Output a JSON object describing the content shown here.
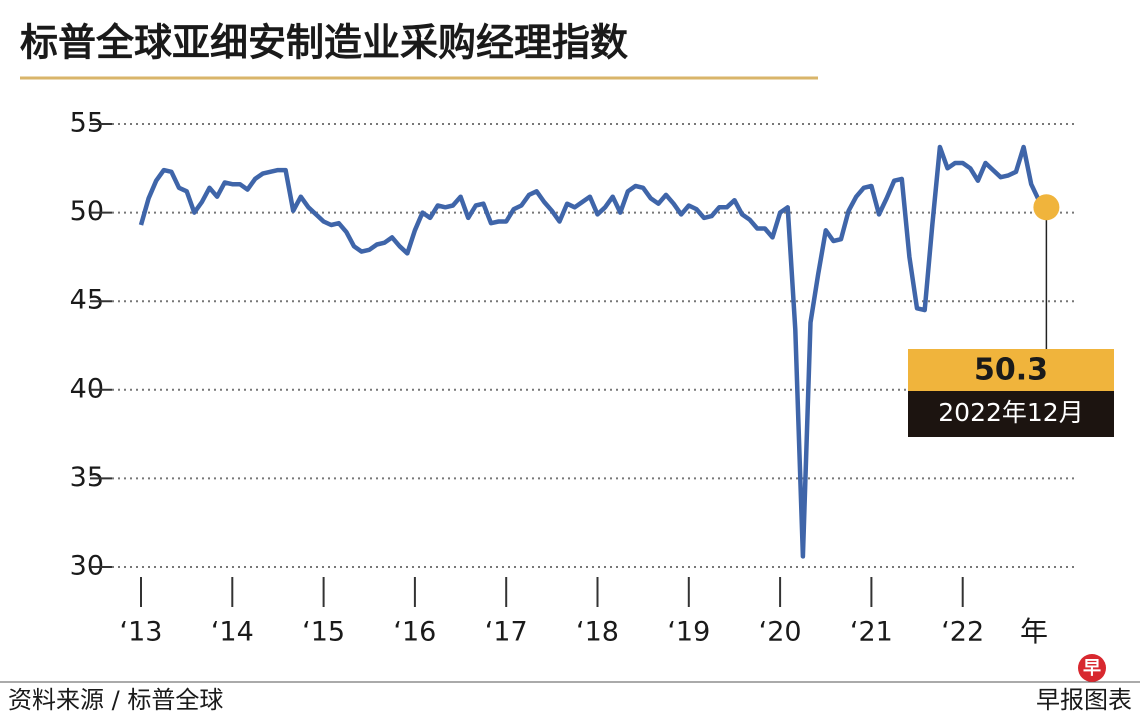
{
  "chart_data": {
    "type": "line",
    "title": "标普全球亚细安制造业采购经理指数",
    "xlabel": "年",
    "categories": [
      "‘13",
      null,
      null,
      null,
      null,
      null,
      null,
      null,
      null,
      null,
      null,
      null,
      "‘14",
      null,
      null,
      null,
      null,
      null,
      null,
      null,
      null,
      null,
      null,
      null,
      "‘15",
      null,
      null,
      null,
      null,
      null,
      null,
      null,
      null,
      null,
      null,
      null,
      "‘16",
      null,
      null,
      null,
      null,
      null,
      null,
      null,
      null,
      null,
      null,
      null,
      "‘17",
      null,
      null,
      null,
      null,
      null,
      null,
      null,
      null,
      null,
      null,
      null,
      "‘18",
      null,
      null,
      null,
      null,
      null,
      null,
      null,
      null,
      null,
      null,
      null,
      "‘19",
      null,
      null,
      null,
      null,
      null,
      null,
      null,
      null,
      null,
      null,
      null,
      "‘20",
      null,
      null,
      null,
      null,
      null,
      null,
      null,
      null,
      null,
      null,
      null,
      "‘21",
      null,
      null,
      null,
      null,
      null,
      null,
      null,
      null,
      null,
      null,
      null,
      "‘22",
      null,
      null,
      null,
      null,
      null,
      null,
      null,
      null,
      null,
      null,
      null
    ],
    "values": [
      49.3,
      50.8,
      51.8,
      52.4,
      52.3,
      51.4,
      51.2,
      50.0,
      50.6,
      51.4,
      50.9,
      51.7,
      51.6,
      51.6,
      51.3,
      51.9,
      52.2,
      52.3,
      52.4,
      52.4,
      50.1,
      50.9,
      50.3,
      49.9,
      49.5,
      49.3,
      49.4,
      48.9,
      48.1,
      47.8,
      47.9,
      48.2,
      48.3,
      48.6,
      48.1,
      47.7,
      49.0,
      50.0,
      49.7,
      50.4,
      50.3,
      50.4,
      50.9,
      49.7,
      50.4,
      50.5,
      49.4,
      49.5,
      49.5,
      50.2,
      50.4,
      51.0,
      51.2,
      50.6,
      50.1,
      49.5,
      50.5,
      50.3,
      50.6,
      50.9,
      49.9,
      50.3,
      50.9,
      50.0,
      51.2,
      51.5,
      51.4,
      50.8,
      50.5,
      51.0,
      50.5,
      49.9,
      50.4,
      50.2,
      49.7,
      49.8,
      50.3,
      50.3,
      50.7,
      49.9,
      49.6,
      49.1,
      49.1,
      48.6,
      50.0,
      50.3,
      43.4,
      30.6,
      43.8,
      46.5,
      49.0,
      48.4,
      48.5,
      50.1,
      50.9,
      51.4,
      51.5,
      49.9,
      50.8,
      51.8,
      51.9,
      47.5,
      44.6,
      44.5,
      49.3,
      53.7,
      52.5,
      52.8,
      52.8,
      52.5,
      51.8,
      52.8,
      52.4,
      52.0,
      52.1,
      52.3,
      53.7,
      51.6,
      50.7,
      50.3
    ],
    "color": "#3f65a9",
    "highlight_color": "#f0b43c",
    "annotation": "2022年12月",
    "ylim": [
      30,
      55
    ],
    "yticks": [
      30,
      35,
      40,
      45,
      50,
      55
    ],
    "grid": true
  },
  "source": "资料来源 / 标普全球",
  "credit": "早报图表",
  "logo": "早"
}
